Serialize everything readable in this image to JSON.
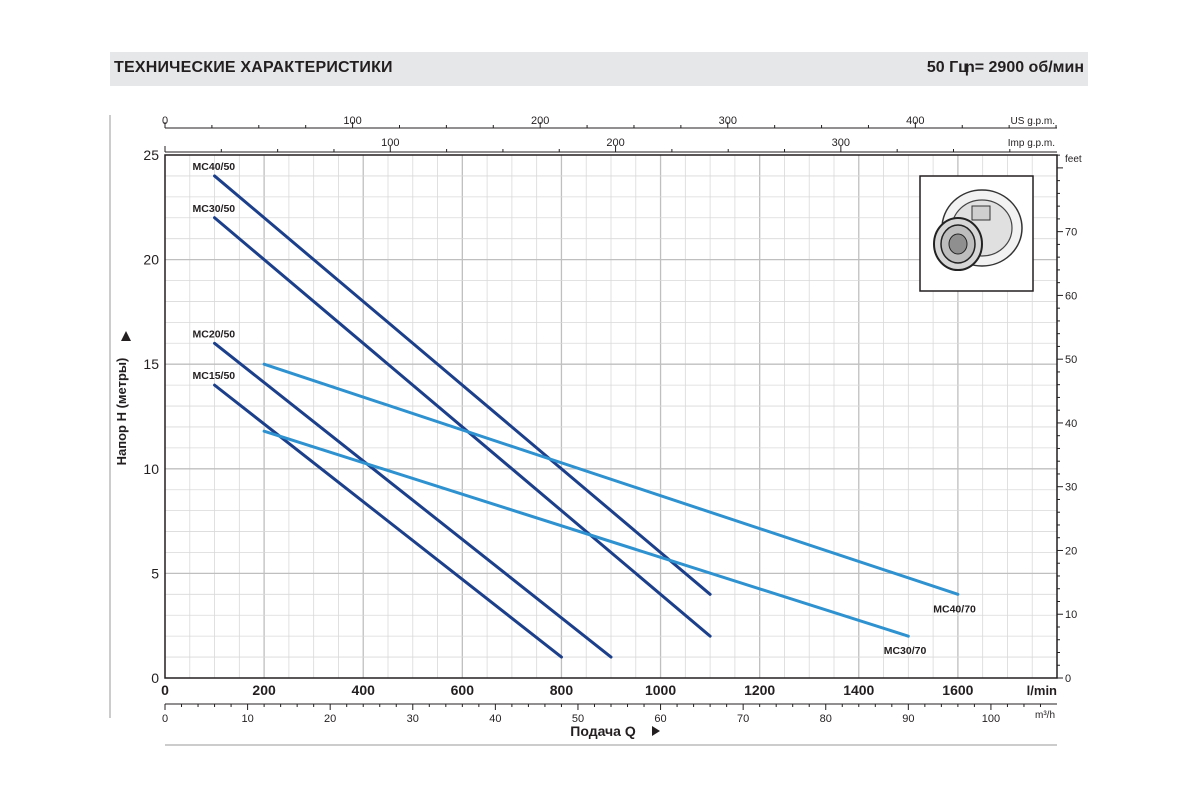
{
  "header": {
    "title": "ТЕХНИЧЕСКИЕ ХАРАКТЕРИСТИКИ",
    "frequency": "50 Гц",
    "speed": "n= 2900  об/мин"
  },
  "colors": {
    "series_50": "#1b3f8b",
    "series_70": "#2f92d0",
    "grid": "#d9d9d9",
    "grid_major": "#bfbfbf",
    "banner": "#e6e7e9"
  },
  "inset_image": {
    "icon": "pump-impeller-icon"
  },
  "chart_data": {
    "type": "line",
    "ylabel": "Напор H (метры)",
    "ylim": [
      0,
      25
    ],
    "y_ticks": [
      0,
      5,
      10,
      15,
      20,
      25
    ],
    "xlabel": "Подача Q",
    "x_unit": "l/min",
    "xlim": [
      0,
      1800
    ],
    "x_ticks": [
      0,
      200,
      400,
      600,
      800,
      1000,
      1200,
      1400,
      1600
    ],
    "secondary_x_bottom": {
      "unit": "m³/h",
      "ticks": [
        0,
        10,
        20,
        30,
        40,
        50,
        60,
        70,
        80,
        90,
        100
      ]
    },
    "secondary_x_top_us": {
      "unit": "US g.p.m.",
      "ticks": [
        0,
        100,
        200,
        300,
        400
      ]
    },
    "secondary_x_top_imp": {
      "unit": "Imp g.p.m.",
      "ticks": [
        100,
        200,
        300
      ]
    },
    "secondary_y_right": {
      "unit": "feet",
      "ticks": [
        0,
        10,
        20,
        30,
        40,
        50,
        60,
        70
      ]
    },
    "grid": true,
    "series": [
      {
        "name": "MC40/50",
        "group": "50",
        "label_pos": "start",
        "points": [
          [
            100,
            24
          ],
          [
            1100,
            4
          ]
        ]
      },
      {
        "name": "MC30/50",
        "group": "50",
        "label_pos": "start",
        "points": [
          [
            100,
            22
          ],
          [
            1100,
            2
          ]
        ]
      },
      {
        "name": "MC20/50",
        "group": "50",
        "label_pos": "start",
        "points": [
          [
            100,
            16
          ],
          [
            900,
            1
          ]
        ]
      },
      {
        "name": "MC15/50",
        "group": "50",
        "label_pos": "start",
        "points": [
          [
            100,
            14
          ],
          [
            800,
            1
          ]
        ]
      },
      {
        "name": "MC40/70",
        "group": "70",
        "label_pos": "end",
        "points": [
          [
            200,
            15
          ],
          [
            1600,
            4
          ]
        ]
      },
      {
        "name": "MC30/70",
        "group": "70",
        "label_pos": "end",
        "points": [
          [
            200,
            11.8
          ],
          [
            1500,
            2
          ]
        ]
      }
    ]
  }
}
